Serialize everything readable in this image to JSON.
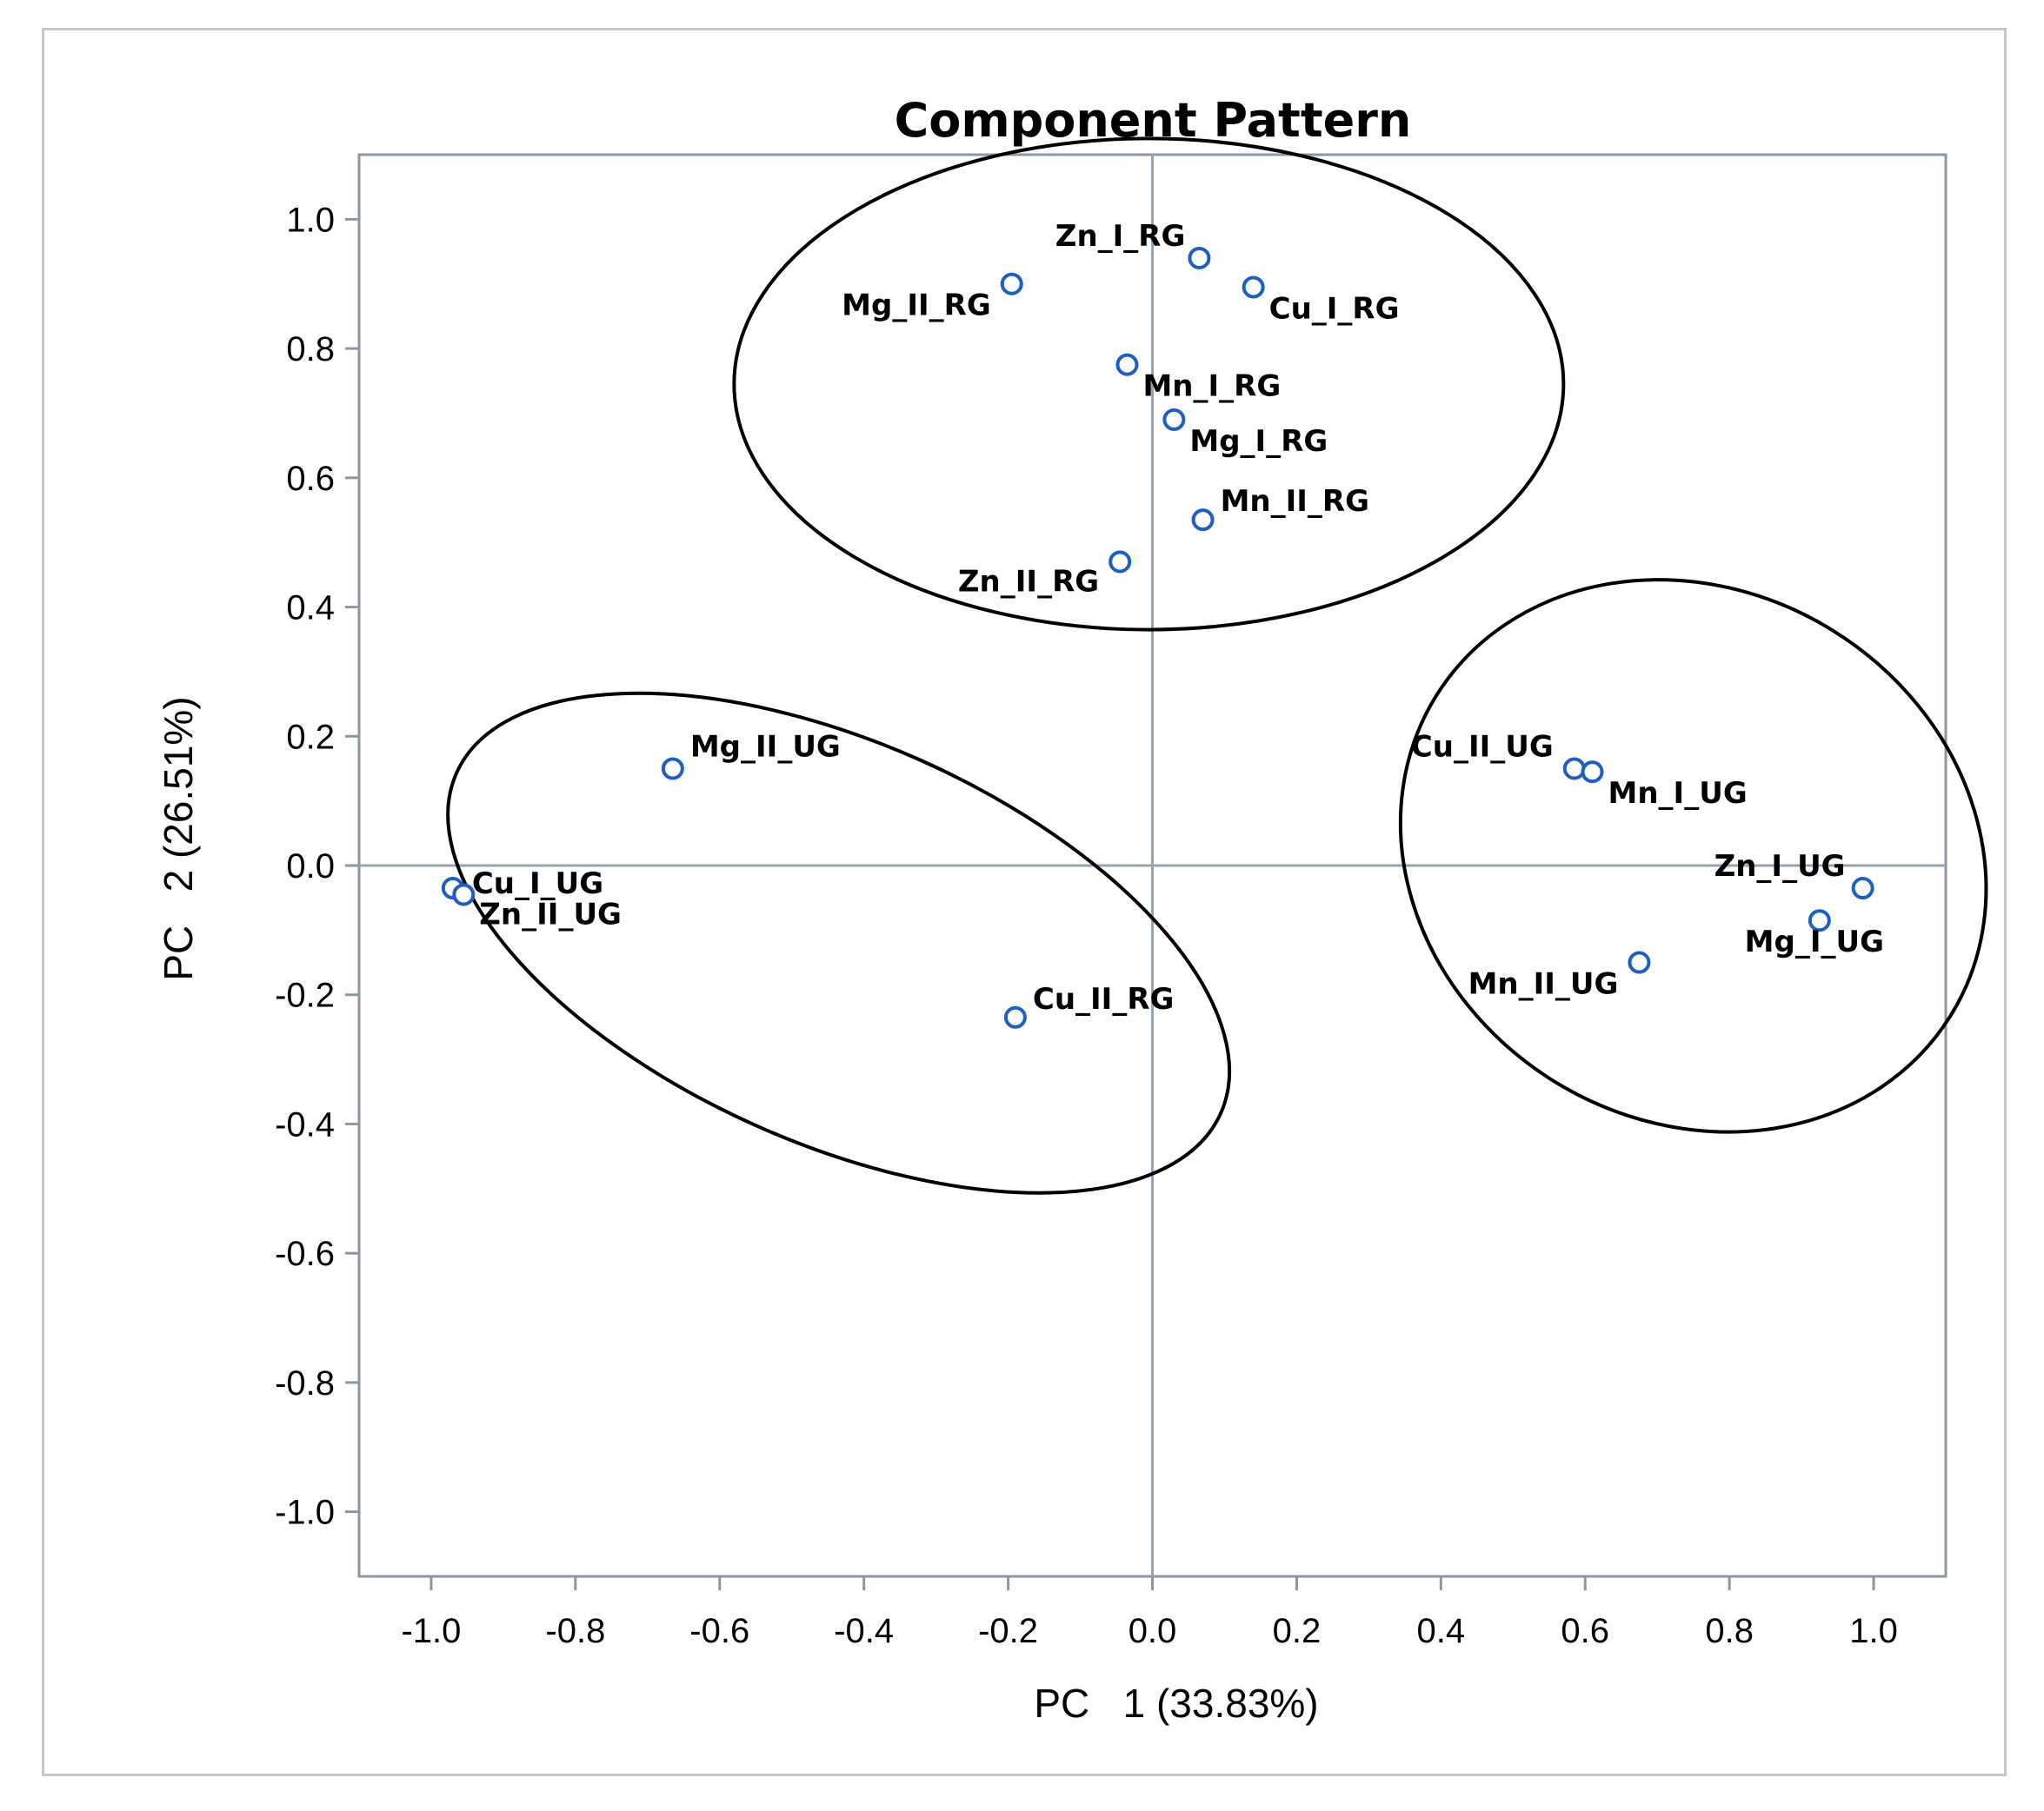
{
  "chart_data": {
    "type": "scatter",
    "title": "Component Pattern",
    "xlabel": "PC   1 (33.83%)",
    "ylabel": "PC   2 (26.51%)",
    "xlim": [
      -1.1,
      1.1
    ],
    "ylim": [
      -1.1,
      1.1
    ],
    "xticks": [
      -1.0,
      -0.8,
      -0.6,
      -0.4,
      -0.2,
      0.0,
      0.2,
      0.4,
      0.6,
      0.8,
      1.0
    ],
    "yticks": [
      -1.0,
      -0.8,
      -0.6,
      -0.4,
      -0.2,
      0.0,
      0.2,
      0.4,
      0.6,
      0.8,
      1.0
    ],
    "grid": false,
    "reference_lines": {
      "x": 0,
      "y": 0
    },
    "marker_color": "#1f5fbf",
    "points": [
      {
        "label": "Zn_I_RG",
        "x": 0.065,
        "y": 0.94
      },
      {
        "label": "Mg_II_RG",
        "x": -0.195,
        "y": 0.9
      },
      {
        "label": "Cu_I_RG",
        "x": 0.14,
        "y": 0.895
      },
      {
        "label": "Mn_I_RG",
        "x": -0.035,
        "y": 0.775
      },
      {
        "label": "Mg_I_RG",
        "x": 0.03,
        "y": 0.69
      },
      {
        "label": "Mn_II_RG",
        "x": 0.07,
        "y": 0.535
      },
      {
        "label": "Zn_II_RG",
        "x": -0.045,
        "y": 0.47
      },
      {
        "label": "Mg_II_UG",
        "x": -0.665,
        "y": 0.15
      },
      {
        "label": "Cu_I_UG",
        "x": -0.97,
        "y": -0.035
      },
      {
        "label": "Zn_II_UG",
        "x": -0.955,
        "y": -0.045
      },
      {
        "label": "Cu_II_RG",
        "x": -0.19,
        "y": -0.235
      },
      {
        "label": "Cu_II_UG",
        "x": 0.585,
        "y": 0.15
      },
      {
        "label": "Mn_I_UG",
        "x": 0.61,
        "y": 0.145
      },
      {
        "label": "Zn_I_UG",
        "x": 0.985,
        "y": -0.035
      },
      {
        "label": "Mg_I_UG",
        "x": 0.925,
        "y": -0.085
      },
      {
        "label": "Mn_II_UG",
        "x": 0.675,
        "y": -0.15
      }
    ],
    "clusters": [
      {
        "cx": -0.005,
        "cy": 0.745,
        "rx": 0.575,
        "ry": 0.38,
        "angle": 0
      },
      {
        "cx": -0.435,
        "cy": -0.12,
        "rx": 0.58,
        "ry": 0.31,
        "angle": 24
      },
      {
        "cx": 0.75,
        "cy": 0.015,
        "rx": 0.42,
        "ry": 0.41,
        "angle": 32
      }
    ]
  }
}
